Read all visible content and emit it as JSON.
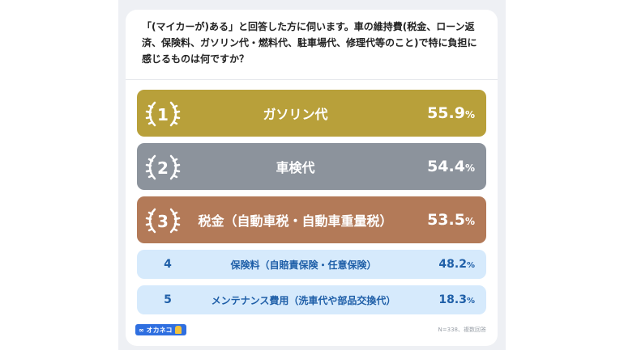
{
  "question": "「(マイカーが)ある」と回答した方に伺います。車の維持費(税金、ローン返済、保険料、ガソリン代・燃料代、駐車場代、修理代等のこと)で特に負担に感じるものは何ですか？",
  "results": [
    {
      "rank": "1",
      "label": "ガソリン代",
      "value": "55.9",
      "unit": "%",
      "color": "#b8a03a"
    },
    {
      "rank": "2",
      "label": "車検代",
      "value": "54.4",
      "unit": "%",
      "color": "#8c939c"
    },
    {
      "rank": "3",
      "label": "税金（自動車税・自動車重量税）",
      "value": "53.5",
      "unit": "%",
      "color": "#b37a58"
    },
    {
      "rank": "4",
      "label": "保険料（自賠責保険・任意保険）",
      "value": "48.2",
      "unit": "%"
    },
    {
      "rank": "5",
      "label": "メンテナンス費用（洗車代や部品交換代）",
      "value": "18.3",
      "unit": "%"
    }
  ],
  "footnote": "N=338、複数回答",
  "logo": {
    "text": "オカネコ",
    "icon": "infinity-icon"
  }
}
